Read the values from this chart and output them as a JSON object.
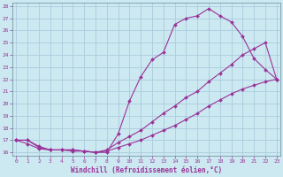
{
  "xlabel": "Windchill (Refroidissement éolien,°C)",
  "bg_color": "#cce8f0",
  "line_color": "#993399",
  "grid_color": "#aaccdd",
  "xmin": 0,
  "xmax": 23,
  "ymin": 16,
  "ymax": 28,
  "line1_x": [
    0,
    1,
    2,
    3,
    4,
    5,
    6,
    7,
    8,
    9,
    10,
    11,
    12,
    13,
    14,
    15,
    16,
    17,
    18,
    19,
    20,
    21,
    22,
    23
  ],
  "line1_y": [
    17.0,
    17.0,
    16.5,
    16.2,
    16.2,
    16.2,
    16.1,
    16.0,
    16.0,
    17.5,
    20.2,
    22.2,
    23.6,
    24.2,
    26.5,
    27.0,
    27.2,
    27.8,
    27.2,
    26.7,
    25.5,
    23.7,
    22.8,
    22.0
  ],
  "line2_x": [
    0,
    1,
    2,
    3,
    4,
    5,
    6,
    7,
    8,
    9,
    10,
    11,
    12,
    13,
    14,
    15,
    16,
    17,
    18,
    19,
    20,
    21,
    22,
    23
  ],
  "line2_y": [
    17.0,
    17.0,
    16.4,
    16.2,
    16.2,
    16.2,
    16.1,
    16.0,
    16.2,
    16.8,
    17.3,
    17.8,
    18.5,
    19.2,
    19.8,
    20.5,
    21.0,
    21.8,
    22.5,
    23.2,
    24.0,
    24.5,
    25.0,
    22.0
  ],
  "line3_x": [
    0,
    1,
    2,
    3,
    4,
    5,
    6,
    7,
    8,
    9,
    10,
    11,
    12,
    13,
    14,
    15,
    16,
    17,
    18,
    19,
    20,
    21,
    22,
    23
  ],
  "line3_y": [
    17.0,
    16.7,
    16.3,
    16.2,
    16.2,
    16.1,
    16.1,
    16.0,
    16.1,
    16.4,
    16.7,
    17.0,
    17.4,
    17.8,
    18.2,
    18.7,
    19.2,
    19.8,
    20.3,
    20.8,
    21.2,
    21.5,
    21.8,
    22.0
  ]
}
